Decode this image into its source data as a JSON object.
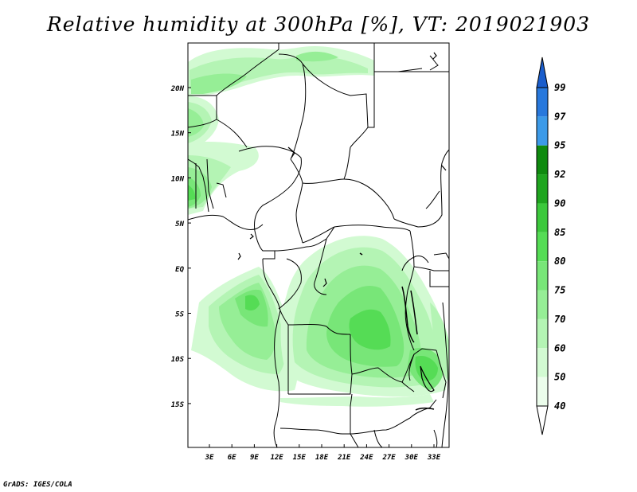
{
  "title": "Relative humidity at 300hPa [%], VT: 2019021903",
  "footer": "GrADS: IGES/COLA",
  "map": {
    "lat_ticks": [
      "20N",
      "15N",
      "10N",
      "5N",
      "EQ",
      "5S",
      "10S",
      "15S"
    ],
    "lon_ticks": [
      "3E",
      "6E",
      "9E",
      "12E",
      "15E",
      "18E",
      "21E",
      "24E",
      "27E",
      "30E",
      "33E"
    ]
  },
  "colorbar": {
    "labels": [
      "99",
      "97",
      "95",
      "92",
      "90",
      "85",
      "80",
      "75",
      "70",
      "60",
      "50",
      "40"
    ],
    "colors": [
      "#1a5dcc",
      "#2878dc",
      "#3c9ae8",
      "#0f8a0f",
      "#1fa51f",
      "#3cc83c",
      "#55dc55",
      "#78e678",
      "#96ee96",
      "#b4f4b4",
      "#d2fad2",
      "#ecfdec"
    ]
  }
}
